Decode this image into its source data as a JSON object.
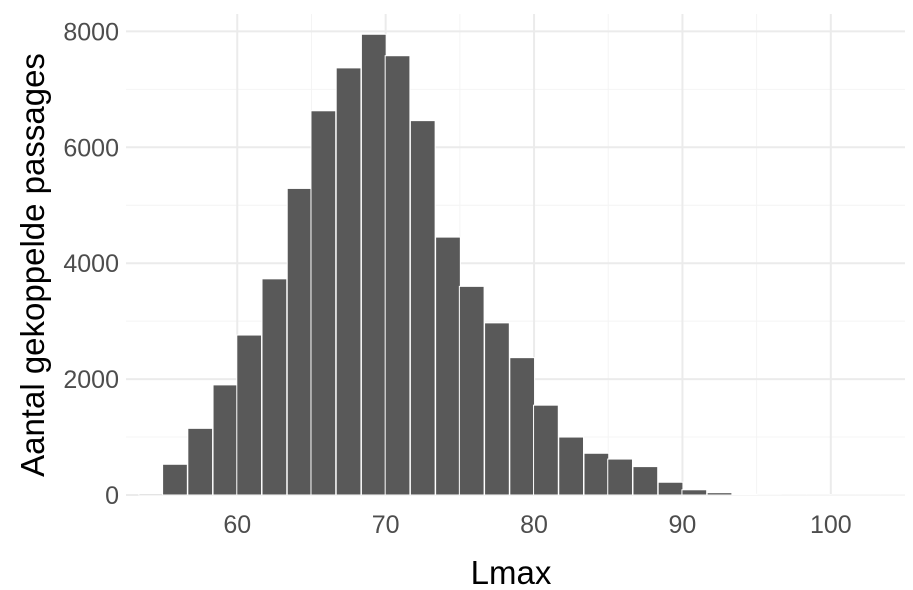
{
  "chart_data": {
    "type": "bar",
    "xlabel": "Lmax",
    "ylabel": "Aantal gekoppelde passages",
    "xlim": [
      52.5,
      105
    ],
    "ylim": [
      0,
      8300
    ],
    "x_ticks": [
      60,
      70,
      80,
      90,
      100
    ],
    "y_ticks": [
      0,
      2000,
      4000,
      6000,
      8000
    ],
    "grid": true,
    "bin_width": 1.667,
    "bins": [
      {
        "x": 54.2,
        "value": 20
      },
      {
        "x": 55.8,
        "value": 530
      },
      {
        "x": 57.5,
        "value": 1150
      },
      {
        "x": 59.2,
        "value": 1900
      },
      {
        "x": 60.8,
        "value": 2760
      },
      {
        "x": 62.5,
        "value": 3730
      },
      {
        "x": 64.2,
        "value": 5290
      },
      {
        "x": 65.8,
        "value": 6630
      },
      {
        "x": 67.5,
        "value": 7370
      },
      {
        "x": 69.2,
        "value": 7950
      },
      {
        "x": 70.8,
        "value": 7580
      },
      {
        "x": 72.5,
        "value": 6460
      },
      {
        "x": 74.2,
        "value": 4450
      },
      {
        "x": 75.8,
        "value": 3600
      },
      {
        "x": 77.5,
        "value": 2970
      },
      {
        "x": 79.2,
        "value": 2370
      },
      {
        "x": 80.8,
        "value": 1550
      },
      {
        "x": 82.5,
        "value": 1000
      },
      {
        "x": 84.2,
        "value": 720
      },
      {
        "x": 85.8,
        "value": 620
      },
      {
        "x": 87.5,
        "value": 490
      },
      {
        "x": 89.2,
        "value": 220
      },
      {
        "x": 90.8,
        "value": 90
      },
      {
        "x": 92.5,
        "value": 40
      },
      {
        "x": 94.2,
        "value": 12
      },
      {
        "x": 95.8,
        "value": 5
      },
      {
        "x": 97.5,
        "value": 3
      },
      {
        "x": 99.2,
        "value": 3
      },
      {
        "x": 100.8,
        "value": 2
      },
      {
        "x": 102.5,
        "value": 2
      },
      {
        "x": 104.2,
        "value": 2
      }
    ],
    "colors": {
      "bar": "#595959",
      "bar_outline": "#ffffff",
      "grid": "#ebebeb",
      "background": "#ffffff"
    }
  }
}
